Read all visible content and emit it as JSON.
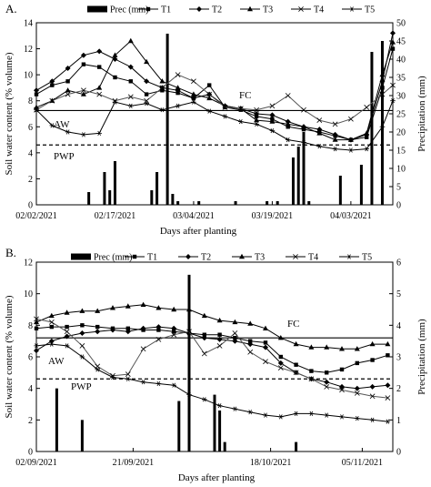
{
  "chart_data": [
    {
      "panel": "A.",
      "type": "line",
      "xlabel": "Days after planting",
      "ylabel": "Soil water content (% volume)",
      "y2label": "Precipitation (mm)",
      "xticklabels": [
        "02/02/2021",
        "02/17/2021",
        "03/04/2021",
        "03/19/2021",
        "04/03/2021"
      ],
      "xticks": [
        0,
        15,
        30,
        45,
        60
      ],
      "xlim": [
        0,
        68
      ],
      "ylim": [
        0,
        14
      ],
      "yticks": [
        0,
        2,
        4,
        6,
        8,
        10,
        12,
        14
      ],
      "y2lim": [
        0,
        50
      ],
      "y2ticks": [
        0,
        5,
        10,
        15,
        20,
        25,
        30,
        35,
        40,
        45,
        50
      ],
      "legend": [
        "Prec (mm)",
        "T1",
        "T2",
        "T3",
        "T4",
        "T5"
      ],
      "reference_lines": [
        {
          "label": "FC",
          "value": 7.25,
          "style": "solid"
        },
        {
          "label": "PWP",
          "value": 4.6,
          "style": "dashed"
        }
      ],
      "region_label": "AW",
      "series": [
        {
          "name": "T1",
          "marker": "square",
          "x": [
            0,
            3,
            6,
            9,
            12,
            15,
            18,
            21,
            24,
            27,
            30,
            33,
            36,
            39,
            42,
            45,
            48,
            51,
            54,
            57,
            60,
            63,
            66,
            68
          ],
          "y": [
            8.5,
            9.2,
            9.5,
            10.8,
            10.6,
            9.8,
            9.5,
            8.5,
            8.8,
            8.6,
            8.2,
            9.2,
            7.5,
            7.3,
            6.8,
            6.6,
            6.0,
            5.8,
            5.6,
            5.3,
            5.0,
            5.2,
            9.0,
            12.0
          ]
        },
        {
          "name": "T2",
          "marker": "diamond",
          "x": [
            0,
            3,
            6,
            9,
            12,
            15,
            18,
            21,
            24,
            27,
            30,
            33,
            36,
            39,
            42,
            45,
            48,
            51,
            54,
            57,
            60,
            63,
            66,
            68
          ],
          "y": [
            8.8,
            9.5,
            10.5,
            11.5,
            11.8,
            11.2,
            10.6,
            9.5,
            9.0,
            8.8,
            8.2,
            8.5,
            7.6,
            7.4,
            7.0,
            6.9,
            6.4,
            6.0,
            5.8,
            5.4,
            5.0,
            5.4,
            9.5,
            13.2
          ]
        },
        {
          "name": "T3",
          "marker": "triangle",
          "x": [
            0,
            3,
            6,
            9,
            12,
            15,
            18,
            21,
            24,
            27,
            30,
            33,
            36,
            39,
            42,
            45,
            48,
            51,
            54,
            57,
            60,
            63,
            66,
            68
          ],
          "y": [
            7.5,
            8.0,
            8.8,
            8.5,
            9.0,
            11.5,
            12.6,
            11.0,
            9.5,
            9.0,
            8.5,
            8.2,
            7.6,
            7.4,
            6.5,
            6.4,
            6.2,
            6.0,
            5.5,
            5.0,
            5.0,
            5.5,
            10.0,
            12.5
          ]
        },
        {
          "name": "T4",
          "marker": "x",
          "x": [
            0,
            3,
            6,
            9,
            12,
            15,
            18,
            21,
            24,
            27,
            30,
            33,
            36,
            39,
            42,
            45,
            48,
            51,
            54,
            57,
            60,
            63,
            66,
            68
          ],
          "y": [
            7.3,
            8.0,
            8.5,
            8.8,
            8.5,
            8.0,
            8.3,
            8.0,
            9.0,
            10.0,
            9.5,
            8.5,
            7.5,
            7.4,
            7.3,
            7.6,
            8.4,
            7.3,
            6.5,
            6.2,
            6.6,
            7.5,
            8.5,
            9.2
          ]
        },
        {
          "name": "T5",
          "marker": "star",
          "x": [
            0,
            3,
            6,
            9,
            12,
            15,
            18,
            21,
            24,
            27,
            30,
            33,
            36,
            39,
            42,
            45,
            48,
            51,
            54,
            57,
            60,
            63,
            66,
            68
          ],
          "y": [
            7.3,
            6.1,
            5.6,
            5.4,
            5.5,
            7.9,
            7.6,
            7.8,
            7.3,
            7.6,
            7.9,
            7.2,
            6.8,
            6.4,
            6.2,
            5.7,
            5.0,
            4.8,
            4.5,
            4.3,
            4.2,
            4.3,
            6.0,
            8.0
          ]
        }
      ],
      "precipitation": {
        "x": [
          10,
          13,
          14,
          15,
          22,
          23,
          25,
          26,
          27,
          31,
          38,
          44,
          46,
          49,
          50,
          51,
          52,
          58,
          62,
          64,
          66
        ],
        "values": [
          3.5,
          9,
          4,
          12,
          4,
          9,
          47,
          3,
          1,
          1,
          1,
          1,
          1,
          13,
          16,
          20,
          1,
          8,
          11,
          42,
          45
        ]
      }
    },
    {
      "panel": "B.",
      "type": "line",
      "xlabel": "Days after planting",
      "ylabel": "Soil water content (% volume)",
      "y2label": "Precipitation (mm)",
      "xticklabels": [
        "02/09/2021",
        "21/09/2021",
        "18/10/2021",
        "05/11/2021"
      ],
      "xticks": [
        0,
        19,
        46,
        64
      ],
      "xlim": [
        0,
        70
      ],
      "ylim": [
        0,
        12
      ],
      "yticks": [
        0,
        2,
        4,
        6,
        8,
        10,
        12
      ],
      "y2lim": [
        0,
        6
      ],
      "y2ticks": [
        0,
        1,
        2,
        3,
        4,
        5,
        6
      ],
      "legend": [
        "Prec (mm)",
        "T1",
        "T2",
        "T3",
        "T4",
        "T5"
      ],
      "reference_lines": [
        {
          "label": "FC",
          "value": 7.2,
          "style": "solid"
        },
        {
          "label": "PWP",
          "value": 4.6,
          "style": "dashed"
        }
      ],
      "region_label": "AW",
      "series": [
        {
          "name": "T1",
          "marker": "square",
          "x": [
            0,
            3,
            6,
            9,
            12,
            15,
            18,
            21,
            24,
            27,
            30,
            33,
            36,
            39,
            42,
            45,
            48,
            51,
            54,
            57,
            60,
            63,
            66,
            69
          ],
          "y": [
            7.8,
            7.9,
            7.9,
            8.0,
            7.9,
            7.8,
            7.8,
            7.7,
            7.7,
            7.6,
            7.5,
            7.4,
            7.4,
            7.2,
            7.0,
            6.9,
            6.0,
            5.5,
            5.1,
            5.0,
            5.2,
            5.6,
            5.8,
            6.1
          ]
        },
        {
          "name": "T2",
          "marker": "diamond",
          "x": [
            0,
            3,
            6,
            9,
            12,
            15,
            18,
            21,
            24,
            27,
            30,
            33,
            36,
            39,
            42,
            45,
            48,
            51,
            54,
            57,
            60,
            63,
            66,
            69
          ],
          "y": [
            6.4,
            7.0,
            7.3,
            7.5,
            7.6,
            7.7,
            7.6,
            7.8,
            7.9,
            7.8,
            7.5,
            7.2,
            7.1,
            7.0,
            6.8,
            6.6,
            5.6,
            5.0,
            4.6,
            4.4,
            4.1,
            4.0,
            4.1,
            4.2
          ]
        },
        {
          "name": "T3",
          "marker": "triangle",
          "x": [
            0,
            3,
            6,
            9,
            12,
            15,
            18,
            21,
            24,
            27,
            30,
            33,
            36,
            39,
            42,
            45,
            48,
            51,
            54,
            57,
            60,
            63,
            66,
            69
          ],
          "y": [
            8.2,
            8.6,
            8.8,
            8.9,
            8.9,
            9.1,
            9.2,
            9.3,
            9.1,
            9.0,
            9.0,
            8.6,
            8.3,
            8.2,
            8.1,
            7.8,
            7.2,
            6.8,
            6.6,
            6.6,
            6.5,
            6.5,
            6.8,
            6.8
          ]
        },
        {
          "name": "T4",
          "marker": "x",
          "x": [
            0,
            3,
            6,
            9,
            12,
            15,
            18,
            21,
            24,
            27,
            30,
            33,
            36,
            39,
            42,
            45,
            48,
            51,
            54,
            57,
            60,
            63,
            66,
            69
          ],
          "y": [
            8.4,
            8.2,
            7.6,
            6.7,
            5.4,
            4.8,
            4.9,
            6.5,
            7.1,
            7.4,
            7.6,
            6.2,
            6.7,
            7.5,
            6.3,
            5.7,
            5.3,
            5.0,
            4.6,
            4.1,
            3.9,
            3.7,
            3.5,
            3.4
          ]
        },
        {
          "name": "T5",
          "marker": "star",
          "x": [
            0,
            3,
            6,
            9,
            12,
            15,
            18,
            21,
            24,
            27,
            30,
            33,
            36,
            39,
            42,
            45,
            48,
            51,
            54,
            57,
            60,
            63,
            66,
            69
          ],
          "y": [
            6.7,
            6.8,
            6.7,
            6.0,
            5.2,
            4.7,
            4.6,
            4.4,
            4.3,
            4.2,
            3.6,
            3.3,
            2.9,
            2.7,
            2.5,
            2.3,
            2.2,
            2.4,
            2.4,
            2.3,
            2.2,
            2.1,
            2.0,
            1.9
          ]
        }
      ],
      "precipitation": {
        "x": [
          4,
          9,
          28,
          30,
          35,
          36,
          37,
          51
        ],
        "values": [
          2.0,
          1.0,
          1.6,
          5.6,
          1.8,
          1.3,
          0.3,
          0.3
        ]
      }
    }
  ]
}
